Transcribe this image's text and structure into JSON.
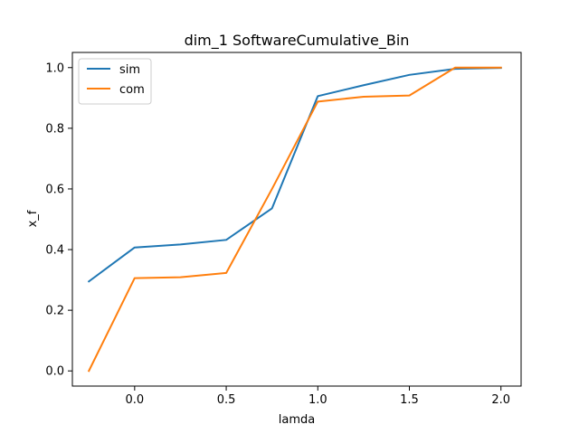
{
  "chart_data": {
    "type": "line",
    "title": "dim_1 SoftwareCumulative_Bin",
    "xlabel": "lamda",
    "ylabel": "x_f",
    "xlim": [
      -0.34,
      2.11
    ],
    "ylim": [
      -0.05,
      1.05
    ],
    "xticks": [
      0.0,
      0.5,
      1.0,
      1.5,
      2.0
    ],
    "xtick_labels": [
      "0.0",
      "0.5",
      "1.0",
      "1.5",
      "2.0"
    ],
    "yticks": [
      0.0,
      0.2,
      0.4,
      0.6,
      0.8,
      1.0
    ],
    "ytick_labels": [
      "0.0",
      "0.2",
      "0.4",
      "0.6",
      "0.8",
      "1.0"
    ],
    "grid": false,
    "legend_position": "top-left",
    "x": [
      -0.25,
      0.0,
      0.25,
      0.5,
      0.75,
      1.0,
      1.25,
      1.5,
      1.75,
      2.0
    ],
    "series": [
      {
        "name": "sim",
        "color": "#1f77b4",
        "values": [
          0.295,
          0.407,
          0.417,
          0.432,
          0.536,
          0.906,
          0.942,
          0.976,
          0.996,
          0.999
        ]
      },
      {
        "name": "com",
        "color": "#ff7f0e",
        "values": [
          0.0,
          0.306,
          0.309,
          0.323,
          0.6,
          0.888,
          0.904,
          0.908,
          1.0,
          1.0
        ]
      }
    ]
  }
}
